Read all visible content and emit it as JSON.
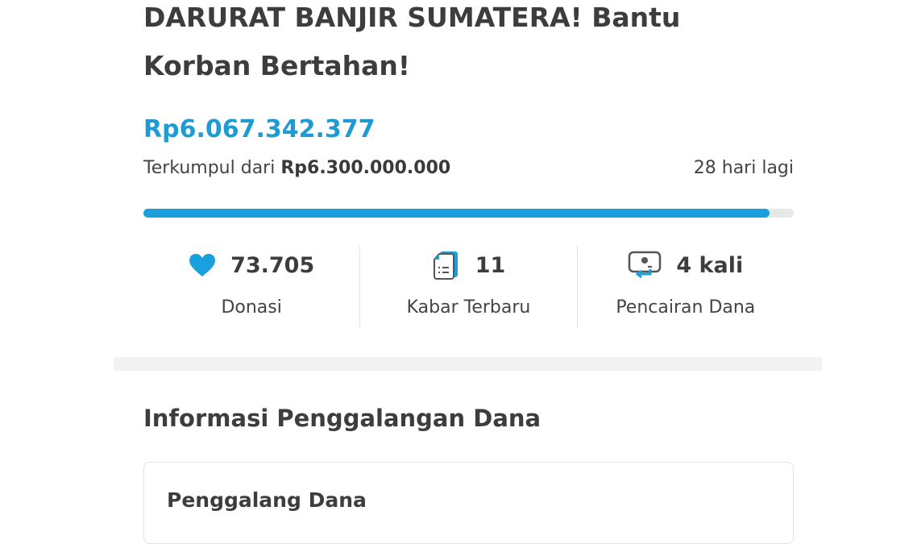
{
  "campaign": {
    "title": "DARURAT BANJIR SUMATERA! Bantu Korban Bertahan!",
    "collected": "Rp6.067.342.377",
    "target_prefix": "Terkumpul dari",
    "target": "Rp6.300.000.000",
    "days_left": "28 hari lagi",
    "progress_percent": 96.3,
    "accent_color": "#1aa1dd"
  },
  "stats": [
    {
      "icon": "heart-icon",
      "value": "73.705",
      "label": "Donasi"
    },
    {
      "icon": "document-icon",
      "value": "11",
      "label": "Kabar Terbaru"
    },
    {
      "icon": "withdrawal-icon",
      "value": "4 kali",
      "label": "Pencairan Dana"
    }
  ],
  "info": {
    "heading": "Informasi Penggalangan Dana",
    "card_title": "Penggalang Dana"
  }
}
